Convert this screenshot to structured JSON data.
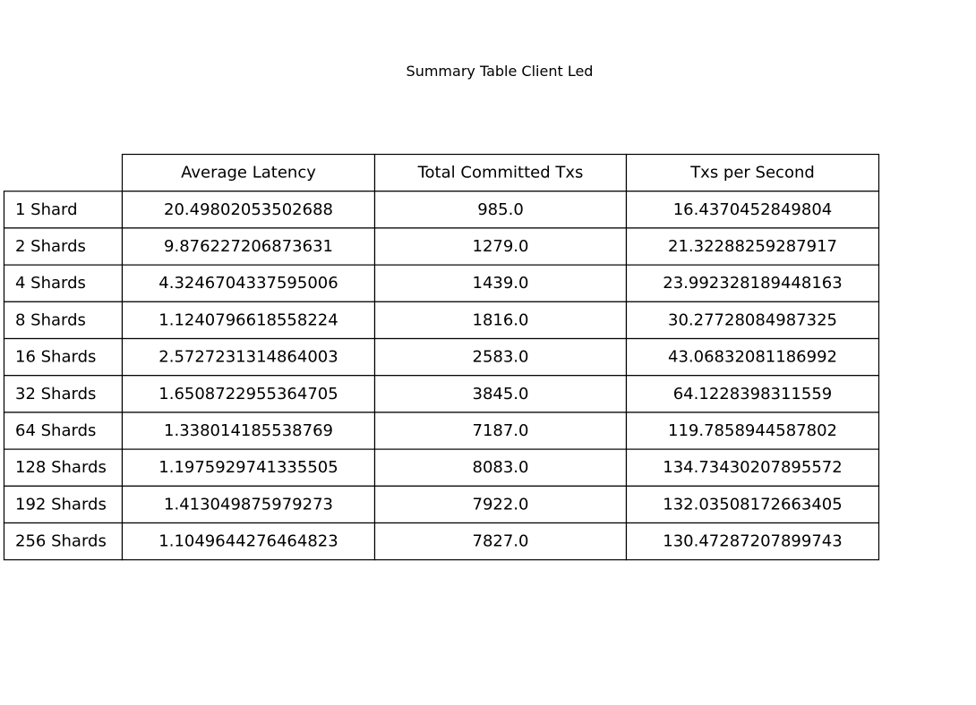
{
  "chart_data": {
    "type": "table",
    "title": "Summary Table Client Led",
    "columns": [
      "Average Latency",
      "Total Committed Txs",
      "Txs per Second"
    ],
    "rows": [
      {
        "label": "1 Shard",
        "values": [
          "20.49802053502688",
          "985.0",
          "16.4370452849804"
        ]
      },
      {
        "label": "2 Shards",
        "values": [
          "9.876227206873631",
          "1279.0",
          "21.32288259287917"
        ]
      },
      {
        "label": "4 Shards",
        "values": [
          "4.3246704337595006",
          "1439.0",
          "23.992328189448163"
        ]
      },
      {
        "label": "8 Shards",
        "values": [
          "1.1240796618558224",
          "1816.0",
          "30.27728084987325"
        ]
      },
      {
        "label": "16 Shards",
        "values": [
          "2.5727231314864003",
          "2583.0",
          "43.06832081186992"
        ]
      },
      {
        "label": "32 Shards",
        "values": [
          "1.6508722955364705",
          "3845.0",
          "64.1228398311559"
        ]
      },
      {
        "label": "64 Shards",
        "values": [
          "1.338014185538769",
          "7187.0",
          "119.7858944587802"
        ]
      },
      {
        "label": "128 Shards",
        "values": [
          "1.1975929741335505",
          "8083.0",
          "134.73430207895572"
        ]
      },
      {
        "label": "192 Shards",
        "values": [
          "1.413049875979273",
          "7922.0",
          "132.03508172663405"
        ]
      },
      {
        "label": "256 Shards",
        "values": [
          "1.1049644276464823",
          "7827.0",
          "130.47287207899743"
        ]
      }
    ]
  }
}
